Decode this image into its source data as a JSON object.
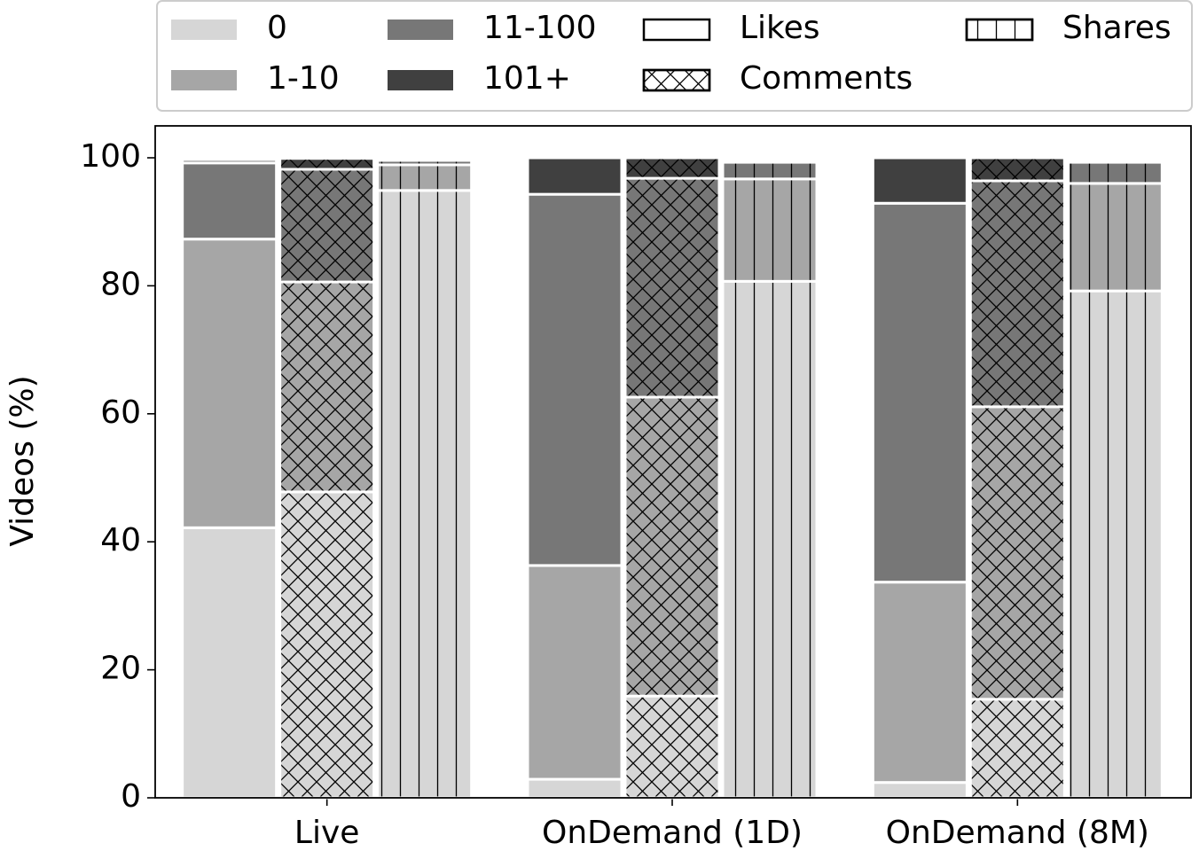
{
  "chart_data": {
    "type": "grouped-stacked-bar",
    "ylabel": "Videos (%)",
    "categories": [
      "Live",
      "OnDemand (1D)",
      "OnDemand (8M)"
    ],
    "ylim": [
      0,
      100
    ],
    "yticks": [
      0,
      20,
      40,
      60,
      80,
      100
    ],
    "stack_levels": [
      {
        "name": "0",
        "color": "#d6d6d6"
      },
      {
        "name": "1-10",
        "color": "#a6a6a6"
      },
      {
        "name": "11-100",
        "color": "#777777"
      },
      {
        "name": "101+",
        "color": "#404040"
      }
    ],
    "series": [
      {
        "name": "Likes",
        "hatch": "none",
        "values": [
          [
            42.2,
            45.1,
            11.9,
            0.5
          ],
          [
            2.9,
            33.4,
            58.0,
            5.7
          ],
          [
            2.4,
            31.3,
            59.2,
            7.1
          ]
        ]
      },
      {
        "name": "Comments",
        "hatch": "cross",
        "values": [
          [
            47.8,
            32.8,
            17.6,
            1.7
          ],
          [
            15.9,
            46.7,
            34.2,
            3.2
          ],
          [
            15.4,
            45.7,
            35.3,
            3.6
          ]
        ]
      },
      {
        "name": "Shares",
        "hatch": "vertical",
        "values": [
          [
            94.9,
            4.0,
            0.7,
            0.2
          ],
          [
            80.7,
            16.0,
            2.6,
            0.2
          ],
          [
            79.2,
            16.8,
            3.3,
            0.2
          ]
        ]
      }
    ],
    "legend": "top"
  }
}
